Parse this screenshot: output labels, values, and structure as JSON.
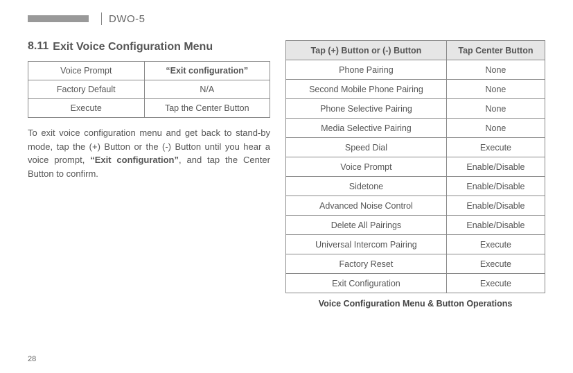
{
  "header": {
    "model": "DWO-5"
  },
  "section": {
    "number": "8.11",
    "title": "Exit Voice Configuration Menu"
  },
  "smallTable": {
    "rows": [
      {
        "label": "Voice Prompt",
        "value": "“Exit configuration”",
        "valueBold": true
      },
      {
        "label": "Factory Default",
        "value": "N/A",
        "valueBold": false
      },
      {
        "label": "Execute",
        "value": "Tap the Center Button",
        "valueBold": false
      }
    ]
  },
  "paragraph": {
    "part1": "To exit voice configuration menu and get back to stand-by mode, tap the (+) Button or the (-) Button until you hear a voice prompt, ",
    "bold": "“Exit configuration”",
    "part2": ", and tap the Center Button to confirm."
  },
  "bigTable": {
    "header1": "Tap (+) Button or (-) Button",
    "header2": "Tap Center Button",
    "rows": [
      {
        "c1": "Phone Pairing",
        "c2": "None"
      },
      {
        "c1": "Second Mobile Phone Pairing",
        "c2": "None"
      },
      {
        "c1": "Phone Selective Pairing",
        "c2": "None"
      },
      {
        "c1": "Media Selective Pairing",
        "c2": "None"
      },
      {
        "c1": "Speed Dial",
        "c2": "Execute"
      },
      {
        "c1": "Voice Prompt",
        "c2": "Enable/Disable"
      },
      {
        "c1": "Sidetone",
        "c2": "Enable/Disable"
      },
      {
        "c1": "Advanced Noise Control",
        "c2": "Enable/Disable"
      },
      {
        "c1": "Delete All Pairings",
        "c2": "Enable/Disable"
      },
      {
        "c1": "Universal Intercom Pairing",
        "c2": "Execute"
      },
      {
        "c1": "Factory Reset",
        "c2": "Execute"
      },
      {
        "c1": "Exit Configuration",
        "c2": "Execute"
      }
    ]
  },
  "caption": "Voice Configuration Menu & Button Operations",
  "pageNumber": "28"
}
